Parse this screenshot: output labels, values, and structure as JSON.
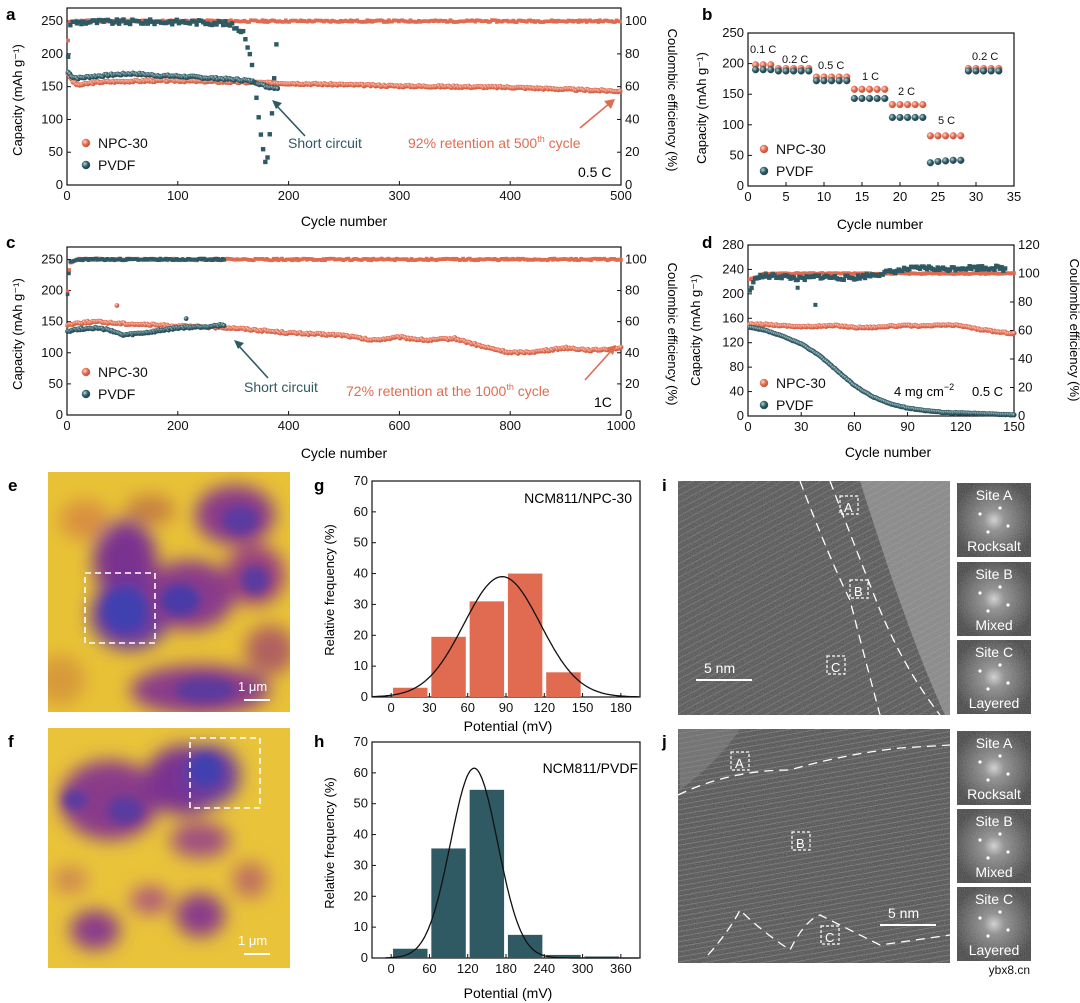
{
  "colors": {
    "npc": "#e06b50",
    "pvdf": "#2f5963",
    "axis": "#111111",
    "note": "#e06b50",
    "ann": "#2f5963"
  },
  "chart_data": [
    {
      "panel": "a",
      "type": "scatter",
      "xlabel": "Cycle number",
      "ylabel": "Capacity (mAh g⁻¹)",
      "y2label": "Coulombic efficiency (%)",
      "xlim": [
        0,
        500
      ],
      "ylim": [
        0,
        270
      ],
      "y2lim": [
        0,
        108
      ],
      "xticks": [
        0,
        100,
        200,
        300,
        400,
        500
      ],
      "yticks": [
        0,
        50,
        100,
        150,
        200,
        250
      ],
      "y2ticks": [
        0,
        20,
        40,
        60,
        80,
        100
      ],
      "legend": [
        "NPC-30",
        "PVDF"
      ],
      "series": [
        {
          "name": "NPC-30 capacity",
          "axis": "y",
          "x": [
            1,
            5,
            10,
            20,
            30,
            50,
            80,
            100,
            150,
            200,
            250,
            300,
            350,
            400,
            450,
            500
          ],
          "y": [
            170,
            158,
            152,
            155,
            157,
            158,
            159,
            159,
            157,
            155,
            153,
            151,
            150,
            149,
            146,
            143
          ]
        },
        {
          "name": "PVDF capacity",
          "axis": "y",
          "x": [
            1,
            5,
            10,
            20,
            40,
            60,
            80,
            100,
            120,
            140,
            160,
            170,
            180,
            190
          ],
          "y": [
            172,
            165,
            163,
            165,
            168,
            170,
            167,
            166,
            164,
            162,
            160,
            157,
            150,
            148
          ]
        },
        {
          "name": "NPC-30 CE",
          "axis": "y2",
          "x": [
            1,
            2,
            5,
            10,
            100,
            200,
            300,
            400,
            500
          ],
          "y": [
            88,
            99,
            100,
            100,
            100,
            100,
            100,
            100,
            100
          ]
        },
        {
          "name": "PVDF CE",
          "axis": "y2",
          "x": [
            1,
            2,
            5,
            20,
            60,
            100,
            140,
            150,
            160,
            165,
            170,
            175,
            180,
            185,
            190
          ],
          "y": [
            78,
            98,
            99,
            99.5,
            99.5,
            99.5,
            99,
            97,
            93,
            80,
            60,
            30,
            10,
            45,
            95
          ]
        }
      ],
      "annotations": [
        "Short circuit",
        "92% retention at 500",
        "th",
        " cycle",
        "0.5 C"
      ]
    },
    {
      "panel": "b",
      "type": "scatter",
      "xlabel": "Cycle number",
      "ylabel": "Capacity (mAh g⁻¹)",
      "xlim": [
        0,
        35
      ],
      "ylim": [
        0,
        250
      ],
      "xticks": [
        0,
        5,
        10,
        15,
        20,
        25,
        30,
        35
      ],
      "yticks": [
        0,
        50,
        100,
        150,
        200,
        250
      ],
      "legend": [
        "NPC-30",
        "PVDF"
      ],
      "rates": [
        "0.1 C",
        "0.2 C",
        "0.5 C",
        "1 C",
        "2 C",
        "5 C",
        "0.2 C"
      ],
      "series": [
        {
          "name": "NPC-30",
          "x": [
            1,
            2,
            3,
            4,
            5,
            6,
            7,
            8,
            9,
            10,
            11,
            12,
            13,
            14,
            15,
            16,
            17,
            18,
            19,
            20,
            21,
            22,
            23,
            24,
            25,
            26,
            27,
            28,
            29,
            30,
            31,
            32,
            33
          ],
          "y": [
            198,
            198,
            198,
            192,
            192,
            192,
            192,
            192,
            178,
            178,
            178,
            178,
            178,
            158,
            158,
            158,
            158,
            158,
            133,
            133,
            133,
            133,
            133,
            82,
            82,
            82,
            82,
            82,
            192,
            192,
            192,
            192,
            192
          ]
        },
        {
          "name": "PVDF",
          "x": [
            1,
            2,
            3,
            4,
            5,
            6,
            7,
            8,
            9,
            10,
            11,
            12,
            13,
            14,
            15,
            16,
            17,
            18,
            19,
            20,
            21,
            22,
            23,
            24,
            25,
            26,
            27,
            28,
            29,
            30,
            31,
            32,
            33
          ],
          "y": [
            190,
            190,
            190,
            188,
            188,
            188,
            188,
            188,
            172,
            172,
            172,
            172,
            172,
            143,
            143,
            143,
            143,
            143,
            112,
            112,
            112,
            112,
            112,
            38,
            40,
            41,
            42,
            42,
            188,
            188,
            188,
            188,
            188
          ]
        }
      ]
    },
    {
      "panel": "c",
      "type": "scatter",
      "xlabel": "Cycle number",
      "ylabel": "Capacity (mAh g⁻¹)",
      "y2label": "Coulombic efficiency (%)",
      "xlim": [
        0,
        1000
      ],
      "ylim": [
        0,
        270
      ],
      "y2lim": [
        0,
        108
      ],
      "xticks": [
        0,
        200,
        400,
        600,
        800,
        1000
      ],
      "yticks": [
        0,
        50,
        100,
        150,
        200,
        250
      ],
      "y2ticks": [
        0,
        20,
        40,
        60,
        80,
        100
      ],
      "legend": [
        "NPC-30",
        "PVDF"
      ],
      "series": [
        {
          "name": "NPC-30 capacity",
          "axis": "y",
          "x": [
            1,
            20,
            50,
            100,
            200,
            300,
            400,
            500,
            550,
            600,
            650,
            700,
            750,
            800,
            850,
            900,
            950,
            1000
          ],
          "y": [
            145,
            148,
            150,
            147,
            143,
            140,
            132,
            128,
            120,
            125,
            120,
            123,
            110,
            100,
            102,
            108,
            104,
            108
          ]
        },
        {
          "name": "PVDF capacity",
          "axis": "y",
          "x": [
            1,
            20,
            50,
            80,
            100,
            150,
            200,
            250,
            285
          ],
          "y": [
            135,
            138,
            140,
            136,
            128,
            133,
            140,
            142,
            145
          ]
        },
        {
          "name": "NPC-30 CE",
          "axis": "y2",
          "x": [
            1,
            5,
            20,
            200,
            400,
            600,
            800,
            1000
          ],
          "y": [
            80,
            98,
            100,
            100,
            100,
            100,
            100,
            100
          ]
        },
        {
          "name": "PVDF CE",
          "axis": "y2",
          "x": [
            1,
            5,
            20,
            100,
            200,
            285
          ],
          "y": [
            78,
            98,
            100,
            100,
            100,
            100
          ]
        }
      ],
      "annotations": [
        "Short circuit",
        "72% retention at the 1000",
        "th",
        " cycle",
        "1C"
      ]
    },
    {
      "panel": "d",
      "type": "scatter",
      "xlabel": "Cycle number",
      "ylabel": "Capacity (mAh g⁻¹)",
      "y2label": "Coulombic efficiency (%)",
      "xlim": [
        0,
        150
      ],
      "ylim": [
        0,
        280
      ],
      "y2lim": [
        0,
        120
      ],
      "xticks": [
        0,
        30,
        60,
        90,
        120,
        150
      ],
      "yticks": [
        0,
        40,
        80,
        120,
        160,
        200,
        240,
        280
      ],
      "y2ticks": [
        0,
        20,
        40,
        60,
        80,
        100,
        120
      ],
      "legend": [
        "NPC-30",
        "PVDF"
      ],
      "series": [
        {
          "name": "NPC-30 capacity",
          "axis": "y",
          "x": [
            1,
            10,
            20,
            30,
            40,
            50,
            60,
            70,
            80,
            90,
            100,
            110,
            120,
            130,
            140,
            150
          ],
          "y": [
            150,
            150,
            148,
            146,
            147,
            148,
            145,
            145,
            147,
            148,
            147,
            149,
            148,
            142,
            138,
            135
          ]
        },
        {
          "name": "PVDF capacity",
          "axis": "y",
          "x": [
            1,
            10,
            20,
            30,
            40,
            50,
            60,
            70,
            80,
            90,
            100,
            110,
            120,
            130,
            140,
            150
          ],
          "y": [
            145,
            140,
            130,
            118,
            100,
            75,
            50,
            32,
            20,
            13,
            9,
            6,
            5,
            4,
            3,
            2
          ]
        },
        {
          "name": "NPC-30 CE",
          "axis": "y2",
          "x": [
            1,
            10,
            50,
            100,
            150
          ],
          "y": [
            96,
            100,
            100,
            100,
            100
          ]
        },
        {
          "name": "PVDF CE",
          "axis": "y2",
          "x": [
            1,
            5,
            10,
            20,
            30,
            40,
            50,
            60,
            70,
            80,
            90,
            100,
            110,
            120,
            130,
            140,
            145
          ],
          "y": [
            88,
            98,
            98,
            98,
            96,
            98,
            97,
            97,
            99,
            101,
            103,
            104,
            103,
            104,
            104,
            104,
            103
          ]
        }
      ],
      "annotations": [
        "4 mg cm",
        "−2",
        "0.5 C"
      ]
    },
    {
      "panel": "g",
      "type": "bar",
      "title": "NCM811/NPC-30",
      "xlabel": "Potential (mV)",
      "ylabel": "Relative frequency (%)",
      "xlim": [
        -15,
        195
      ],
      "ylim": [
        0,
        70
      ],
      "xticks": [
        0,
        30,
        60,
        90,
        120,
        150,
        180
      ],
      "yticks": [
        0,
        10,
        20,
        30,
        40,
        50,
        60,
        70
      ],
      "categories": [
        15,
        45,
        75,
        105,
        135
      ],
      "values": [
        3,
        19.5,
        31,
        40,
        8
      ],
      "fit": {
        "type": "gaussian",
        "mean": 87,
        "sd": 30,
        "peak": 39
      }
    },
    {
      "panel": "h",
      "type": "bar",
      "title": "NCM811/PVDF",
      "xlabel": "Potential (mV)",
      "ylabel": "Relative frequency (%)",
      "xlim": [
        -30,
        390
      ],
      "ylim": [
        0,
        70
      ],
      "xticks": [
        0,
        60,
        120,
        180,
        240,
        300,
        360
      ],
      "yticks": [
        0,
        10,
        20,
        30,
        40,
        50,
        60,
        70
      ],
      "categories": [
        30,
        90,
        150,
        210,
        270,
        330
      ],
      "values": [
        3,
        35.5,
        54.5,
        7.5,
        1,
        0.5
      ],
      "fit": {
        "type": "gaussian",
        "mean": 130,
        "sd": 37,
        "peak": 61.5
      }
    }
  ],
  "panel_labels": {
    "a": "a",
    "b": "b",
    "c": "c",
    "d": "d",
    "e": "e",
    "f": "f",
    "g": "g",
    "h": "h",
    "i": "i",
    "j": "j"
  },
  "kpfm": {
    "scale_e": "1 μm",
    "scale_f": "1 μm"
  },
  "tem": {
    "scale_i": "5 nm",
    "scale_j": "5 nm",
    "box_labels": [
      "A",
      "B",
      "C"
    ],
    "insets": [
      {
        "site": "Site A",
        "phase": "Rocksalt"
      },
      {
        "site": "Site B",
        "phase": "Mixed"
      },
      {
        "site": "Site C",
        "phase": "Layered"
      }
    ]
  },
  "watermark": "ybx8.cn"
}
